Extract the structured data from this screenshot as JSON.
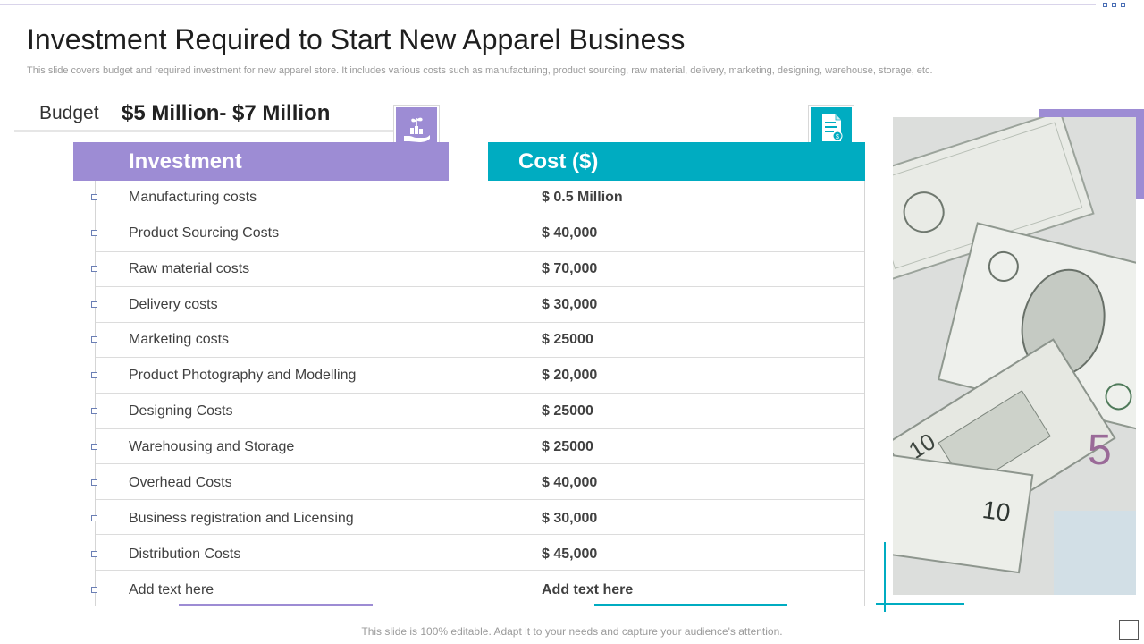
{
  "slide": {
    "title": "Investment Required to Start New Apparel  Business",
    "subtitle": "This slide covers budget and required investment for new apparel store. It includes various costs such as manufacturing, product sourcing, raw material, delivery, marketing, designing, warehouse, storage, etc.",
    "footer": "This slide is 100% editable. Adapt it to your needs and capture your audience's attention."
  },
  "budget": {
    "label": "Budget",
    "value": "$5 Million- $7 Million"
  },
  "table": {
    "headers": {
      "investment": "Investment",
      "cost": "Cost ($)"
    },
    "rows": [
      {
        "investment": "Manufacturing  costs",
        "cost": "$ 0.5 Million"
      },
      {
        "investment": "Product Sourcing Costs",
        "cost": "$ 40,000"
      },
      {
        "investment": "Raw material costs",
        "cost": "$ 70,000"
      },
      {
        "investment": "Delivery costs",
        "cost": "$ 30,000"
      },
      {
        "investment": "Marketing costs",
        "cost": "$ 25000"
      },
      {
        "investment": "Product Photography  and Modelling",
        "cost": "$ 20,000"
      },
      {
        "investment": "Designing Costs",
        "cost": "$ 25000"
      },
      {
        "investment": "Warehousing  and Storage",
        "cost": "$ 25000"
      },
      {
        "investment": "Overhead Costs",
        "cost": "$ 40,000"
      },
      {
        "investment": "Business registration and Licensing",
        "cost": "$ 30,000"
      },
      {
        "investment": "Distribution Costs",
        "cost": "$ 45,000"
      },
      {
        "investment": "Add text here",
        "cost": "Add text here"
      }
    ]
  },
  "icons": {
    "investment_icon": "hand-with-plant-and-coins-icon",
    "cost_icon": "invoice-document-icon"
  },
  "colors": {
    "purple_accent": "#9d8cd4",
    "teal_accent": "#00acc1"
  }
}
